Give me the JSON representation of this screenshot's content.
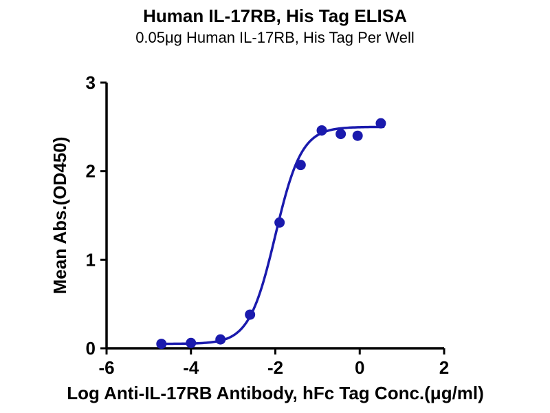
{
  "chart_data": {
    "type": "scatter",
    "title": "Human IL-17RB, His Tag ELISA",
    "subtitle": "0.05μg Human IL-17RB, His Tag Per Well",
    "xlabel": "Log Anti-IL-17RB Antibody, hFc Tag Conc.(μg/ml)",
    "ylabel": "Mean Abs.(OD450)",
    "xlim": [
      -6,
      2
    ],
    "ylim": [
      0,
      3
    ],
    "x_ticks": [
      -6,
      -4,
      -2,
      0,
      2
    ],
    "y_ticks": [
      0,
      1,
      2,
      3
    ],
    "grid": false,
    "legend": "none",
    "series_color": "#1a1aad",
    "axis_color": "#000000",
    "points": [
      {
        "x": -4.7,
        "y": 0.05
      },
      {
        "x": -4.0,
        "y": 0.06
      },
      {
        "x": -3.3,
        "y": 0.1
      },
      {
        "x": -2.6,
        "y": 0.38
      },
      {
        "x": -1.9,
        "y": 1.42
      },
      {
        "x": -1.4,
        "y": 2.07
      },
      {
        "x": -0.9,
        "y": 2.46
      },
      {
        "x": -0.45,
        "y": 2.42
      },
      {
        "x": -0.05,
        "y": 2.4
      },
      {
        "x": 0.5,
        "y": 2.54
      }
    ],
    "fit_curve": {
      "model": "4PL",
      "bottom": 0.05,
      "top": 2.5,
      "log_ec50": -2.0,
      "hill_slope": 1.4,
      "x_range": [
        -4.72,
        0.58
      ]
    }
  }
}
